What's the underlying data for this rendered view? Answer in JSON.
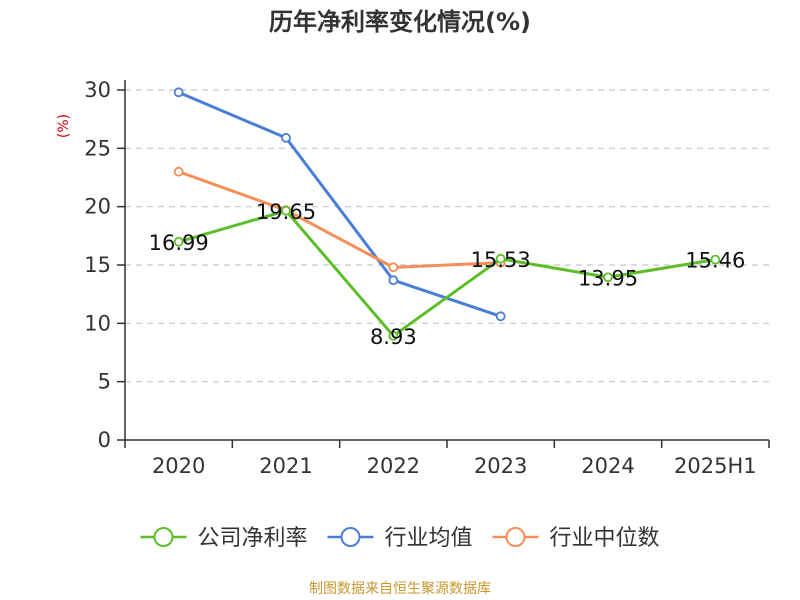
{
  "chart_data": {
    "type": "line",
    "title": "历年净利率变化情况(%)",
    "ylabel": "(%)",
    "ylabel_color": "#cc0000",
    "categories": [
      "2020",
      "2021",
      "2022",
      "2023",
      "2024",
      "2025H1"
    ],
    "ylim": [
      0,
      30
    ],
    "yticks": [
      "0",
      "5",
      "10",
      "15",
      "20",
      "25",
      "30"
    ],
    "grid": true,
    "legend_position": "bottom",
    "series": [
      {
        "name": "公司净利率",
        "color": "#5cbf2a",
        "values": [
          16.99,
          19.65,
          8.93,
          15.53,
          13.95,
          15.46
        ],
        "labels": [
          "16.99",
          "19.65",
          "8.93",
          "15.53",
          "13.95",
          "15.46"
        ]
      },
      {
        "name": "行业均值",
        "color": "#4a7fd6",
        "values": [
          29.8,
          25.9,
          13.7,
          10.6,
          null,
          null
        ]
      },
      {
        "name": "行业中位数",
        "color": "#f58e58",
        "values": [
          23.0,
          19.7,
          14.8,
          15.2,
          null,
          null
        ]
      }
    ]
  },
  "source": {
    "text": "制图数据来自恒生聚源数据库",
    "color": "#c8962d"
  }
}
